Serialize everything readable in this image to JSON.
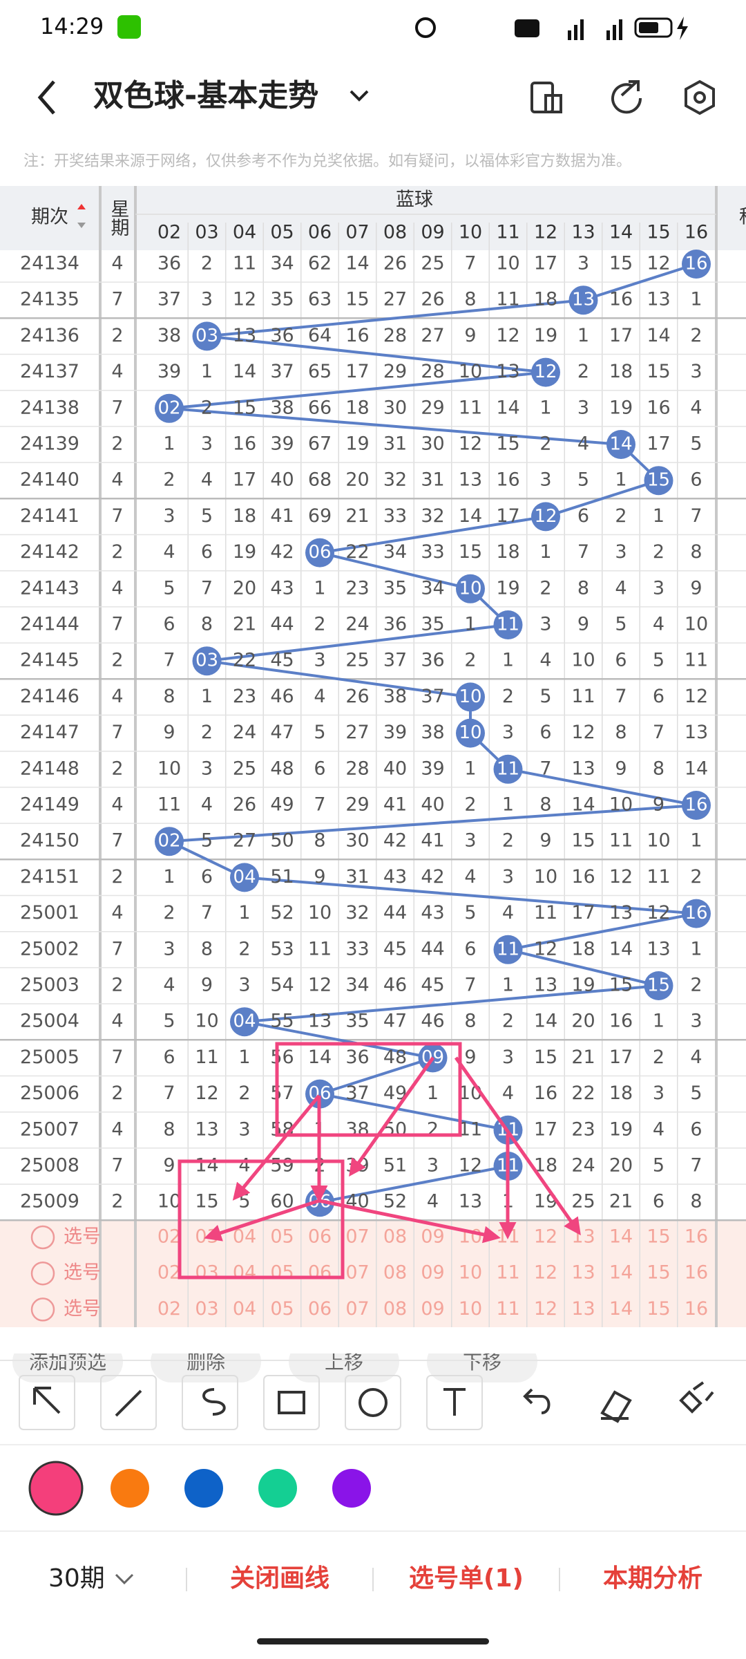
{
  "status_bar": {
    "time": "14:29"
  },
  "header": {
    "title": "双色球-基本走势"
  },
  "notice": "注：开奖结果来源于网络，仅供参考不作为兑奖依据。如有疑问，以福体彩官方数据为准。",
  "table": {
    "col_issue": "期次",
    "col_weekday": "星期",
    "group_label": "蓝球",
    "cut_column": "科",
    "ball_numbers": [
      "02",
      "03",
      "04",
      "05",
      "06",
      "07",
      "08",
      "09",
      "10",
      "11",
      "12",
      "13",
      "14",
      "15",
      "16"
    ],
    "rows": [
      {
        "issue": "24134",
        "weekday": 4,
        "cells": [
          36,
          2,
          11,
          34,
          62,
          14,
          26,
          25,
          7,
          10,
          17,
          3,
          15,
          12,
          "16"
        ]
      },
      {
        "issue": "24135",
        "weekday": 7,
        "cells": [
          37,
          3,
          12,
          35,
          63,
          15,
          27,
          26,
          8,
          11,
          18,
          "13",
          16,
          13,
          1
        ]
      },
      {
        "issue": "24136",
        "weekday": 2,
        "cells": [
          38,
          "03",
          13,
          36,
          64,
          16,
          28,
          27,
          9,
          12,
          19,
          1,
          17,
          14,
          2
        ]
      },
      {
        "issue": "24137",
        "weekday": 4,
        "cells": [
          39,
          1,
          14,
          37,
          65,
          17,
          29,
          28,
          10,
          13,
          "12",
          2,
          18,
          15,
          3
        ]
      },
      {
        "issue": "24138",
        "weekday": 7,
        "cells": [
          "02",
          2,
          15,
          38,
          66,
          18,
          30,
          29,
          11,
          14,
          1,
          3,
          19,
          16,
          4
        ]
      },
      {
        "issue": "24139",
        "weekday": 2,
        "cells": [
          1,
          3,
          16,
          39,
          67,
          19,
          31,
          30,
          12,
          15,
          2,
          4,
          "14",
          17,
          5
        ]
      },
      {
        "issue": "24140",
        "weekday": 4,
        "cells": [
          2,
          4,
          17,
          40,
          68,
          20,
          32,
          31,
          13,
          16,
          3,
          5,
          1,
          "15",
          6
        ]
      },
      {
        "issue": "24141",
        "weekday": 7,
        "cells": [
          3,
          5,
          18,
          41,
          69,
          21,
          33,
          32,
          14,
          17,
          "12",
          6,
          2,
          1,
          7
        ]
      },
      {
        "issue": "24142",
        "weekday": 2,
        "cells": [
          4,
          6,
          19,
          42,
          "06",
          22,
          34,
          33,
          15,
          18,
          1,
          7,
          3,
          2,
          8
        ]
      },
      {
        "issue": "24143",
        "weekday": 4,
        "cells": [
          5,
          7,
          20,
          43,
          1,
          23,
          35,
          34,
          "10",
          19,
          2,
          8,
          4,
          3,
          9
        ]
      },
      {
        "issue": "24144",
        "weekday": 7,
        "cells": [
          6,
          8,
          21,
          44,
          2,
          24,
          36,
          35,
          1,
          "11",
          3,
          9,
          5,
          4,
          10
        ]
      },
      {
        "issue": "24145",
        "weekday": 2,
        "cells": [
          7,
          "03",
          22,
          45,
          3,
          25,
          37,
          36,
          2,
          1,
          4,
          10,
          6,
          5,
          11
        ]
      },
      {
        "issue": "24146",
        "weekday": 4,
        "cells": [
          8,
          1,
          23,
          46,
          4,
          26,
          38,
          37,
          "10",
          2,
          5,
          11,
          7,
          6,
          12
        ]
      },
      {
        "issue": "24147",
        "weekday": 7,
        "cells": [
          9,
          2,
          24,
          47,
          5,
          27,
          39,
          38,
          "10",
          3,
          6,
          12,
          8,
          7,
          13
        ]
      },
      {
        "issue": "24148",
        "weekday": 2,
        "cells": [
          10,
          3,
          25,
          48,
          6,
          28,
          40,
          39,
          1,
          "11",
          7,
          13,
          9,
          8,
          14
        ]
      },
      {
        "issue": "24149",
        "weekday": 4,
        "cells": [
          11,
          4,
          26,
          49,
          7,
          29,
          41,
          40,
          2,
          1,
          8,
          14,
          10,
          9,
          "16"
        ]
      },
      {
        "issue": "24150",
        "weekday": 7,
        "cells": [
          "02",
          5,
          27,
          50,
          8,
          30,
          42,
          41,
          3,
          2,
          9,
          15,
          11,
          10,
          1
        ]
      },
      {
        "issue": "24151",
        "weekday": 2,
        "cells": [
          1,
          6,
          "04",
          51,
          9,
          31,
          43,
          42,
          4,
          3,
          10,
          16,
          12,
          11,
          2
        ]
      },
      {
        "issue": "25001",
        "weekday": 4,
        "cells": [
          2,
          7,
          1,
          52,
          10,
          32,
          44,
          43,
          5,
          4,
          11,
          17,
          13,
          12,
          "16"
        ]
      },
      {
        "issue": "25002",
        "weekday": 7,
        "cells": [
          3,
          8,
          2,
          53,
          11,
          33,
          45,
          44,
          6,
          "11",
          12,
          18,
          14,
          13,
          1
        ]
      },
      {
        "issue": "25003",
        "weekday": 2,
        "cells": [
          4,
          9,
          3,
          54,
          12,
          34,
          46,
          45,
          7,
          1,
          13,
          19,
          15,
          "15",
          2
        ]
      },
      {
        "issue": "25004",
        "weekday": 4,
        "cells": [
          5,
          10,
          "04",
          55,
          13,
          35,
          47,
          46,
          8,
          2,
          14,
          20,
          16,
          1,
          3
        ]
      },
      {
        "issue": "25005",
        "weekday": 7,
        "cells": [
          6,
          11,
          1,
          56,
          14,
          36,
          48,
          "09",
          9,
          3,
          15,
          21,
          17,
          2,
          4
        ]
      },
      {
        "issue": "25006",
        "weekday": 2,
        "cells": [
          7,
          12,
          2,
          57,
          "06",
          37,
          49,
          1,
          10,
          4,
          16,
          22,
          18,
          3,
          5
        ]
      },
      {
        "issue": "25007",
        "weekday": 4,
        "cells": [
          8,
          13,
          3,
          58,
          1,
          38,
          50,
          2,
          11,
          "11",
          17,
          23,
          19,
          4,
          6
        ]
      },
      {
        "issue": "25008",
        "weekday": 7,
        "cells": [
          9,
          14,
          4,
          59,
          2,
          39,
          51,
          3,
          12,
          "11",
          18,
          24,
          20,
          5,
          7
        ]
      },
      {
        "issue": "25009",
        "weekday": 2,
        "cells": [
          10,
          15,
          5,
          60,
          "06",
          40,
          52,
          4,
          13,
          1,
          19,
          25,
          21,
          6,
          8
        ]
      }
    ],
    "pick_rows": [
      {
        "label": "选号"
      },
      {
        "label": "选号"
      },
      {
        "label": "选号"
      }
    ]
  },
  "actions": [
    "添加预选",
    "删除",
    "上移",
    "下移"
  ],
  "footer": {
    "period": "30期",
    "buttons": [
      "关闭画线",
      "选号单(1)",
      "本期分析"
    ]
  }
}
